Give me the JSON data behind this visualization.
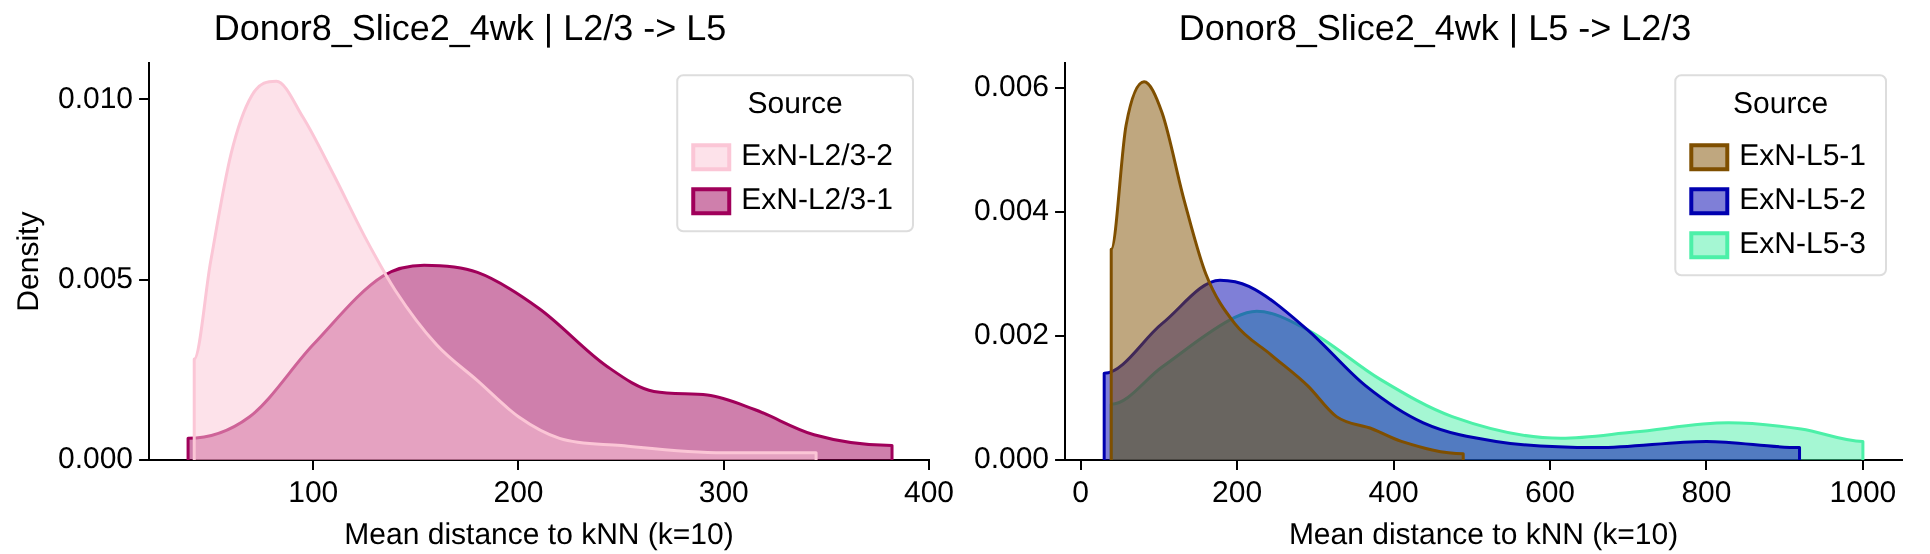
{
  "chart_data": [
    {
      "type": "area",
      "title": "Donor8_Slice2_4wk | L2/3 -> L5",
      "xlabel": "Mean distance to kNN (k=10)",
      "ylabel": "Density",
      "legend_title": "Source",
      "legend": "top right",
      "xlim": [
        20,
        400
      ],
      "xticks": [
        100,
        200,
        300,
        400
      ],
      "ylim": [
        0,
        0.011
      ],
      "yticks": [
        {
          "value": 0,
          "label": "0.000"
        },
        {
          "value": 0.005,
          "label": "0.005"
        },
        {
          "value": 0.01,
          "label": "0.010"
        }
      ],
      "series": [
        {
          "name": "ExN-L2/3-2",
          "color": "#fbc6d6",
          "x": [
            42,
            42,
            50,
            60,
            70,
            82,
            95,
            110,
            125,
            140,
            160,
            180,
            200,
            220,
            250,
            300,
            345,
            345
          ],
          "values": [
            0,
            0.0028,
            0.0055,
            0.0085,
            0.0101,
            0.0105,
            0.0095,
            0.0079,
            0.0062,
            0.0047,
            0.0032,
            0.0022,
            0.0012,
            0.0006,
            0.0004,
            0.0002,
            0.0002,
            0
          ]
        },
        {
          "name": "ExN-L2/3-1",
          "color": "#a0005a",
          "x": [
            39,
            39,
            69,
            100,
            134,
            154,
            180,
            210,
            243,
            266,
            292,
            315,
            344,
            382,
            382
          ],
          "values": [
            0,
            0.0006,
            0.0012,
            0.0032,
            0.0051,
            0.0054,
            0.0052,
            0.0042,
            0.0026,
            0.0019,
            0.0018,
            0.0014,
            0.0007,
            0.0004,
            0
          ]
        }
      ]
    },
    {
      "type": "area",
      "title": "Donor8_Slice2_4wk | L5 -> L2/3",
      "xlabel": "Mean distance to kNN (k=10)",
      "legend_title": "Source",
      "legend": "top right",
      "xlim": [
        -20,
        1050
      ],
      "xticks": [
        0,
        200,
        400,
        600,
        800,
        1000
      ],
      "ylim": [
        0,
        0.0064
      ],
      "yticks": [
        {
          "value": 0,
          "label": "0.000"
        },
        {
          "value": 0.002,
          "label": "0.002"
        },
        {
          "value": 0.004,
          "label": "0.004"
        },
        {
          "value": 0.006,
          "label": "0.006"
        }
      ],
      "series": [
        {
          "name": "ExN-L5-1",
          "color": "#7f4f00",
          "x": [
            39,
            39,
            58,
            81,
            104,
            132,
            160,
            197,
            243,
            290,
            327,
            373,
            410,
            489,
            489
          ],
          "values": [
            0,
            0.0034,
            0.0054,
            0.0061,
            0.0056,
            0.0042,
            0.003,
            0.0022,
            0.0017,
            0.0012,
            0.0007,
            0.0005,
            0.0003,
            0.0001,
            0
          ]
        },
        {
          "name": "ExN-L5-2",
          "color": "#0000b0",
          "x": [
            30,
            30,
            104,
            178,
            215,
            290,
            364,
            438,
            531,
            661,
            800,
            919,
            919
          ],
          "values": [
            0,
            0.0014,
            0.0022,
            0.0029,
            0.0028,
            0.0021,
            0.0012,
            0.0006,
            0.0003,
            0.0002,
            0.0003,
            0.0002,
            0
          ]
        },
        {
          "name": "ExN-L5-3",
          "color": "#4cf0a8",
          "x": [
            39,
            39,
            104,
            197,
            225,
            290,
            383,
            475,
            614,
            707,
            828,
            921,
            1000,
            1000
          ],
          "values": [
            0,
            0.0009,
            0.0015,
            0.0023,
            0.0024,
            0.0021,
            0.0013,
            0.0007,
            0.00035,
            0.00045,
            0.0006,
            0.0005,
            0.0003,
            0
          ]
        }
      ]
    }
  ]
}
